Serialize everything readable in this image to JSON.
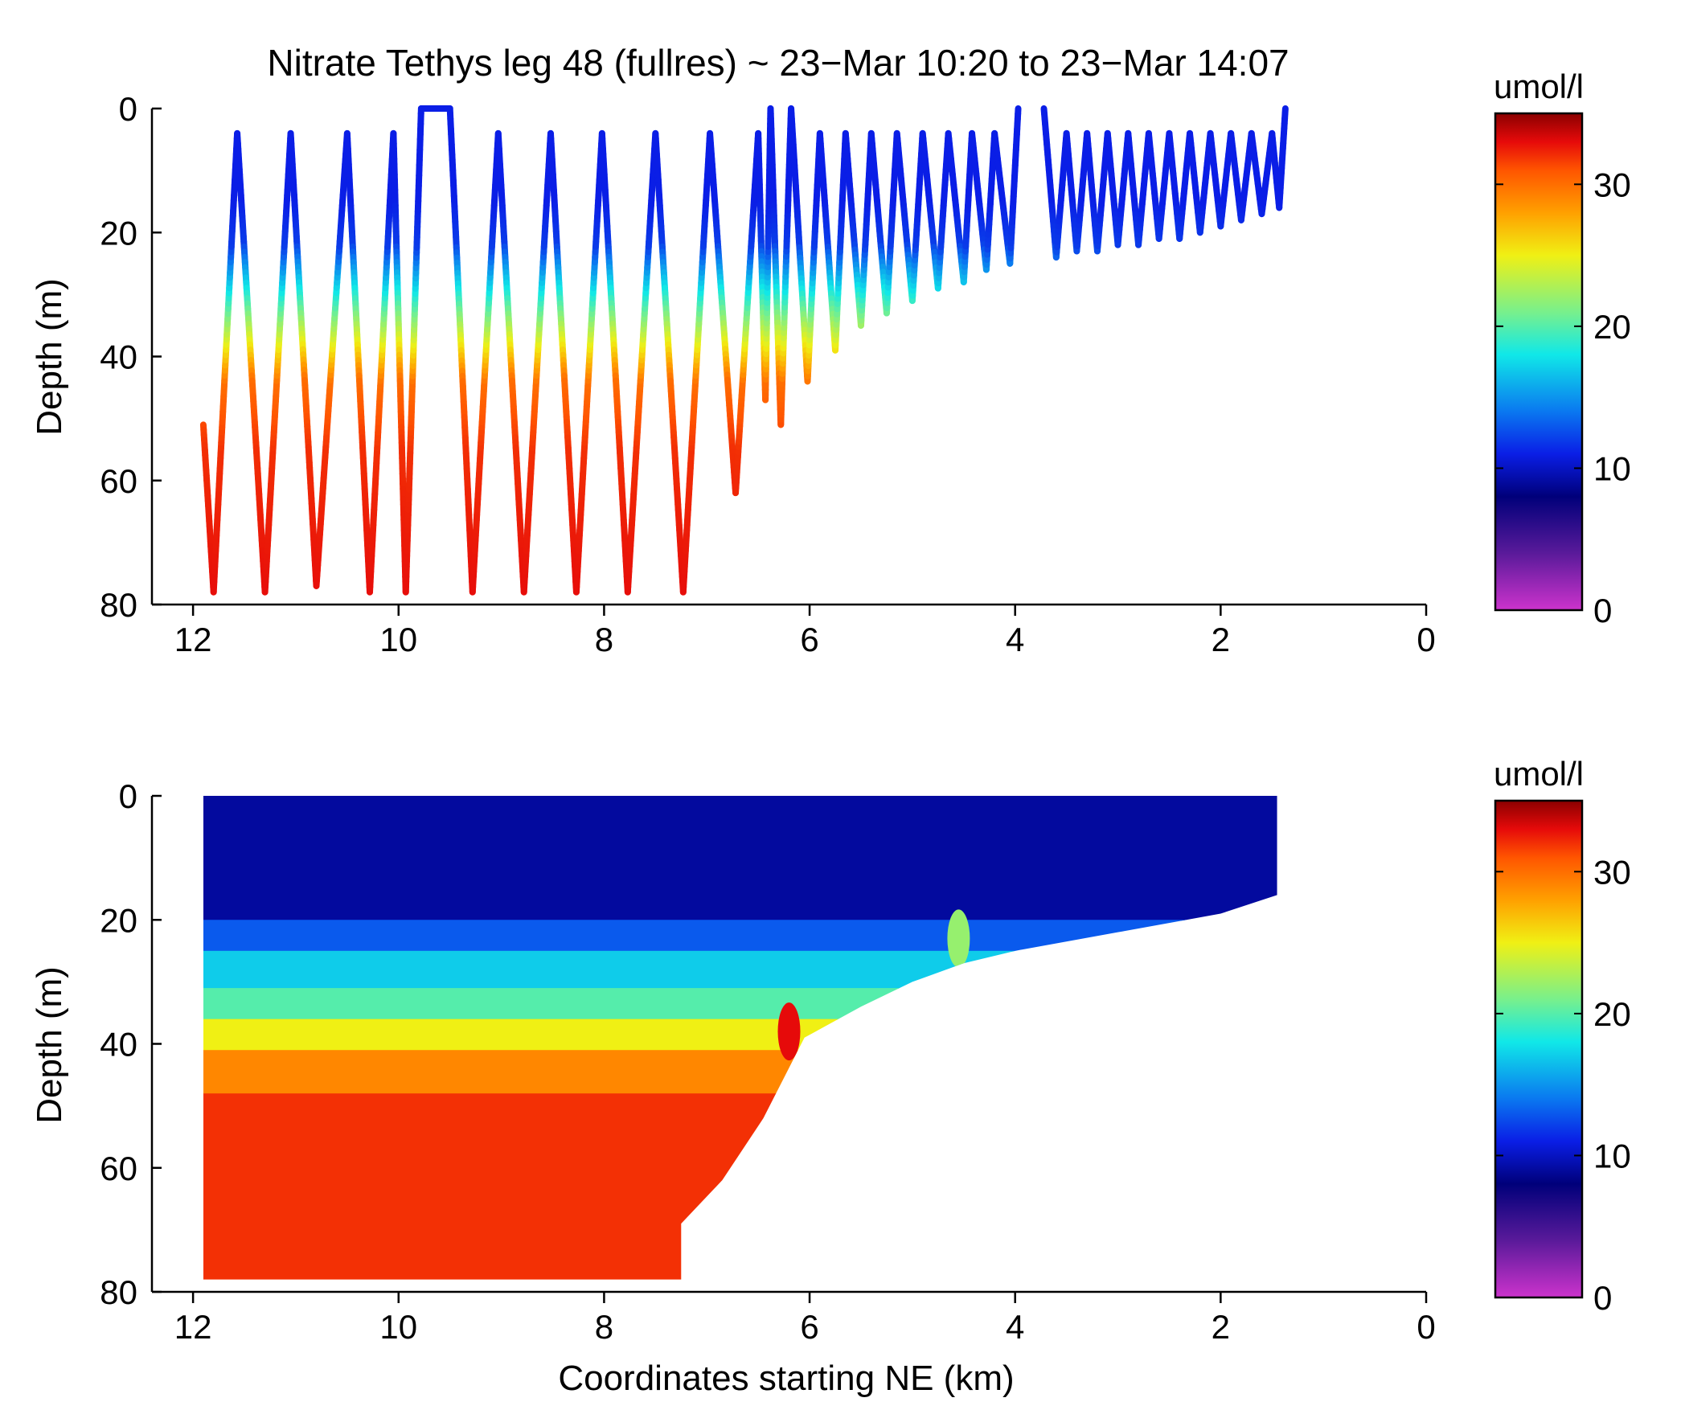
{
  "title": "Nitrate Tethys leg 48 (fullres) ~ 23−Mar 10:20 to 23−Mar 14:07",
  "colormap": {
    "stops": [
      {
        "value": 0,
        "color": "#cc33cc"
      },
      {
        "value": 4,
        "color": "#5a1a9a"
      },
      {
        "value": 8,
        "color": "#00007a"
      },
      {
        "value": 11,
        "color": "#0a1ee6"
      },
      {
        "value": 14,
        "color": "#0a78f0"
      },
      {
        "value": 18,
        "color": "#10e8e8"
      },
      {
        "value": 21,
        "color": "#78f08c"
      },
      {
        "value": 25,
        "color": "#f0f014"
      },
      {
        "value": 28,
        "color": "#ffa000"
      },
      {
        "value": 31,
        "color": "#ff5500"
      },
      {
        "value": 33,
        "color": "#e60a0a"
      },
      {
        "value": 35,
        "color": "#8b0000"
      }
    ]
  },
  "chart_data": [
    {
      "type": "scatter",
      "title": "Nitrate Tethys leg 48 (fullres) ~ 23−Mar 10:20 to 23−Mar 14:07",
      "xlabel": "",
      "ylabel": "Depth (m)",
      "xlim": [
        12.4,
        0
      ],
      "ylim": [
        0,
        80
      ],
      "y_reversed": true,
      "xticks": [
        "12",
        "10",
        "8",
        "6",
        "4",
        "2",
        "0"
      ],
      "yticks": [
        "0",
        "20",
        "40",
        "60",
        "80"
      ],
      "colorbar": {
        "label": "umol/l",
        "range": [
          0,
          35
        ],
        "ticks": [
          "0",
          "10",
          "20",
          "30"
        ]
      },
      "profile_turning_points": [
        {
          "x": 11.9,
          "depth": 51
        },
        {
          "x": 11.8,
          "depth": 78
        },
        {
          "x": 11.57,
          "depth": 4
        },
        {
          "x": 11.3,
          "depth": 78
        },
        {
          "x": 11.05,
          "depth": 4
        },
        {
          "x": 10.8,
          "depth": 77
        },
        {
          "x": 10.5,
          "depth": 4
        },
        {
          "x": 10.28,
          "depth": 78
        },
        {
          "x": 10.05,
          "depth": 4
        },
        {
          "x": 9.93,
          "depth": 78
        },
        {
          "x": 9.78,
          "depth": 0
        },
        {
          "x": 9.5,
          "depth": 0
        },
        {
          "x": 9.28,
          "depth": 78
        },
        {
          "x": 9.03,
          "depth": 4
        },
        {
          "x": 8.78,
          "depth": 78
        },
        {
          "x": 8.52,
          "depth": 4
        },
        {
          "x": 8.27,
          "depth": 78
        },
        {
          "x": 8.02,
          "depth": 4
        },
        {
          "x": 7.77,
          "depth": 78
        },
        {
          "x": 7.5,
          "depth": 4
        },
        {
          "x": 7.23,
          "depth": 78
        },
        {
          "x": 6.97,
          "depth": 4
        },
        {
          "x": 6.72,
          "depth": 62
        },
        {
          "x": 6.5,
          "depth": 4
        },
        {
          "x": 6.43,
          "depth": 47
        },
        {
          "x": 6.38,
          "depth": 0
        },
        {
          "x": 6.28,
          "depth": 51
        },
        {
          "x": 6.18,
          "depth": 0
        },
        {
          "x": 6.02,
          "depth": 44
        },
        {
          "x": 5.9,
          "depth": 4
        },
        {
          "x": 5.75,
          "depth": 39
        },
        {
          "x": 5.65,
          "depth": 4
        },
        {
          "x": 5.5,
          "depth": 35
        },
        {
          "x": 5.4,
          "depth": 4
        },
        {
          "x": 5.25,
          "depth": 33
        },
        {
          "x": 5.15,
          "depth": 4
        },
        {
          "x": 5.0,
          "depth": 31
        },
        {
          "x": 4.9,
          "depth": 4
        },
        {
          "x": 4.75,
          "depth": 29
        },
        {
          "x": 4.65,
          "depth": 4
        },
        {
          "x": 4.5,
          "depth": 28
        },
        {
          "x": 4.42,
          "depth": 4
        },
        {
          "x": 4.28,
          "depth": 26
        },
        {
          "x": 4.2,
          "depth": 4
        },
        {
          "x": 4.05,
          "depth": 25
        },
        {
          "x": 3.97,
          "depth": 0
        }
      ],
      "profile_turning_points_segment_2": [
        {
          "x": 3.72,
          "depth": 0
        },
        {
          "x": 3.6,
          "depth": 24
        },
        {
          "x": 3.5,
          "depth": 4
        },
        {
          "x": 3.4,
          "depth": 23
        },
        {
          "x": 3.3,
          "depth": 4
        },
        {
          "x": 3.2,
          "depth": 23
        },
        {
          "x": 3.1,
          "depth": 4
        },
        {
          "x": 3.0,
          "depth": 22
        },
        {
          "x": 2.9,
          "depth": 4
        },
        {
          "x": 2.8,
          "depth": 22
        },
        {
          "x": 2.7,
          "depth": 4
        },
        {
          "x": 2.6,
          "depth": 21
        },
        {
          "x": 2.5,
          "depth": 4
        },
        {
          "x": 2.4,
          "depth": 21
        },
        {
          "x": 2.3,
          "depth": 4
        },
        {
          "x": 2.2,
          "depth": 20
        },
        {
          "x": 2.1,
          "depth": 4
        },
        {
          "x": 2.0,
          "depth": 19
        },
        {
          "x": 1.9,
          "depth": 4
        },
        {
          "x": 1.8,
          "depth": 18
        },
        {
          "x": 1.7,
          "depth": 4
        },
        {
          "x": 1.6,
          "depth": 17
        },
        {
          "x": 1.5,
          "depth": 4
        },
        {
          "x": 1.43,
          "depth": 16
        },
        {
          "x": 1.37,
          "depth": 0
        }
      ],
      "nitrate_vs_depth": [
        {
          "depth": 0,
          "value": 11
        },
        {
          "depth": 15,
          "value": 11
        },
        {
          "depth": 22,
          "value": 12
        },
        {
          "depth": 28,
          "value": 17
        },
        {
          "depth": 33,
          "value": 21
        },
        {
          "depth": 38,
          "value": 25
        },
        {
          "depth": 44,
          "value": 30
        },
        {
          "depth": 55,
          "value": 32
        },
        {
          "depth": 80,
          "value": 33
        }
      ]
    },
    {
      "type": "heatmap",
      "title": "",
      "xlabel": "Coordinates starting NE (km)",
      "ylabel": "Depth (m)",
      "xlim": [
        12.4,
        0
      ],
      "ylim": [
        0,
        80
      ],
      "y_reversed": true,
      "xticks": [
        "12",
        "10",
        "8",
        "6",
        "4",
        "2",
        "0"
      ],
      "yticks": [
        "0",
        "20",
        "40",
        "60",
        "80"
      ],
      "colorbar": {
        "label": "umol/l",
        "range": [
          0,
          35
        ],
        "ticks": [
          "0",
          "10",
          "20",
          "30"
        ]
      },
      "coverage_bottom_depth": [
        {
          "x": 11.9,
          "depth": 78
        },
        {
          "x": 7.25,
          "depth": 78
        },
        {
          "x": 7.25,
          "depth": 69
        },
        {
          "x": 6.85,
          "depth": 62
        },
        {
          "x": 6.45,
          "depth": 52
        },
        {
          "x": 6.05,
          "depth": 39
        },
        {
          "x": 5.5,
          "depth": 34
        },
        {
          "x": 5.0,
          "depth": 30
        },
        {
          "x": 4.5,
          "depth": 27
        },
        {
          "x": 4.0,
          "depth": 25
        },
        {
          "x": 3.0,
          "depth": 22
        },
        {
          "x": 2.0,
          "depth": 19
        },
        {
          "x": 1.45,
          "depth": 16
        }
      ],
      "layers": [
        {
          "depth_top": 0,
          "depth_bottom": 20,
          "value": 9
        },
        {
          "depth_top": 20,
          "depth_bottom": 25,
          "value": 13
        },
        {
          "depth_top": 25,
          "depth_bottom": 31,
          "value": 17
        },
        {
          "depth_top": 31,
          "depth_bottom": 36,
          "value": 20
        },
        {
          "depth_top": 36,
          "depth_bottom": 41,
          "value": 25
        },
        {
          "depth_top": 41,
          "depth_bottom": 48,
          "value": 29
        },
        {
          "depth_top": 48,
          "depth_bottom": 80,
          "value": 32
        }
      ],
      "features": [
        {
          "x": 6.2,
          "depth": 38,
          "value": 33
        },
        {
          "x": 4.55,
          "depth": 23,
          "value": 22
        }
      ]
    }
  ]
}
